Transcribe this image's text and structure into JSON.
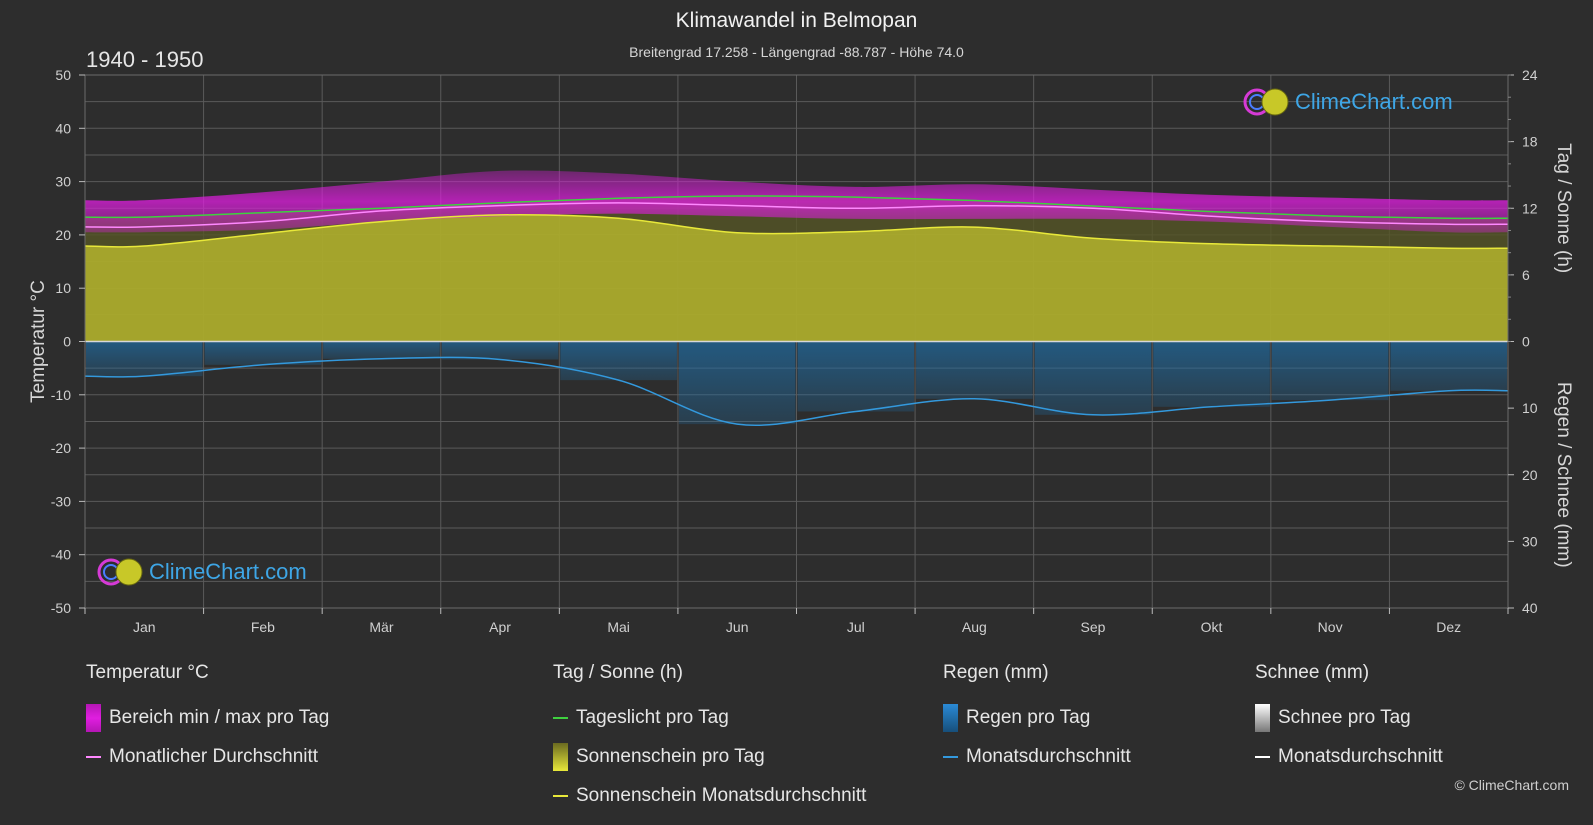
{
  "header": {
    "title": "Klimawandel in Belmopan",
    "subtitle": "Breitengrad 17.258 - Längengrad -88.787 - Höhe 74.0",
    "period": "1940 - 1950"
  },
  "brand": {
    "logo_text": "ClimeChart.com",
    "copyright": "© ClimeChart.com"
  },
  "colors": {
    "background": "#2d2d2d",
    "temp_range": "#e01ee0",
    "temp_avg": "#ff88ff",
    "daylight": "#3fd13f",
    "sunshine_fill": "#b4b42e",
    "sunshine_avg": "#e8e83a",
    "rain": "#1f6fa8",
    "rain_avg": "#3399dd",
    "snow_avg": "#ffffff",
    "logo": "#3ea6e6"
  },
  "chart_data": {
    "type": "area",
    "title": "Klimawandel in Belmopan",
    "categories": [
      "Jan",
      "Feb",
      "Mär",
      "Apr",
      "Mai",
      "Jun",
      "Jul",
      "Aug",
      "Sep",
      "Okt",
      "Nov",
      "Dez"
    ],
    "axes": {
      "left": {
        "label": "Temperatur °C",
        "range": [
          -50,
          50
        ],
        "ticks": [
          "50",
          "40",
          "30",
          "20",
          "10",
          "0",
          "-10",
          "-20",
          "-30",
          "-40",
          "-50"
        ]
      },
      "right_top": {
        "label": "Tag / Sonne (h)",
        "range": [
          0,
          24
        ],
        "ticks": [
          "24",
          "18",
          "12",
          "6",
          "0"
        ]
      },
      "right_bottom": {
        "label": "Regen / Schnee (mm)",
        "range": [
          0,
          40
        ],
        "ticks": [
          "0",
          "10",
          "20",
          "30",
          "40"
        ]
      }
    },
    "grid": true,
    "series": [
      {
        "name": "Bereich min / max pro Tag",
        "kind": "band",
        "axis": "temperature",
        "min": [
          20.5,
          21,
          22.5,
          23.5,
          24,
          23.5,
          23,
          23,
          23,
          22.5,
          21.5,
          20.5
        ],
        "max": [
          26.5,
          28,
          30,
          32,
          31.5,
          30,
          29,
          29.5,
          28.5,
          27.5,
          27,
          26.5
        ]
      },
      {
        "name": "Monatlicher Durchschnitt",
        "kind": "line",
        "axis": "temperature",
        "values": [
          21.5,
          22.5,
          24.5,
          25.5,
          26,
          25.5,
          25,
          25.5,
          25,
          23.5,
          22.5,
          22
        ]
      },
      {
        "name": "Tageslicht pro Tag",
        "kind": "line",
        "axis": "sun_hours",
        "values": [
          11.2,
          11.6,
          12,
          12.5,
          12.9,
          13.1,
          13,
          12.7,
          12.2,
          11.7,
          11.3,
          11.1
        ]
      },
      {
        "name": "Sonnenschein pro Tag",
        "kind": "area",
        "axis": "sun_hours",
        "values": [
          8.6,
          9.7,
          10.8,
          11.4,
          11.1,
          9.8,
          9.9,
          10.3,
          9.3,
          8.8,
          8.6,
          8.4
        ]
      },
      {
        "name": "Sonnenschein Monatsdurchschnitt",
        "kind": "line",
        "axis": "sun_hours",
        "values": [
          8.6,
          9.7,
          10.8,
          11.4,
          11.1,
          9.8,
          9.9,
          10.3,
          9.3,
          8.8,
          8.6,
          8.4
        ]
      },
      {
        "name": "Regen pro Tag",
        "kind": "bars",
        "axis": "precip",
        "values": [
          5.2,
          3.5,
          2.6,
          2.7,
          5.8,
          12.4,
          10.5,
          8.6,
          11,
          9.8,
          8.8,
          7.4
        ]
      },
      {
        "name": "Monatsdurchschnitt Regen",
        "kind": "line",
        "axis": "precip",
        "values": [
          5.2,
          3.5,
          2.6,
          2.7,
          5.8,
          12.4,
          10.5,
          8.6,
          11,
          9.8,
          8.8,
          7.4
        ]
      },
      {
        "name": "Monatsdurchschnitt Schnee",
        "kind": "line",
        "axis": "precip",
        "values": [
          0,
          0,
          0,
          0,
          0,
          0,
          0,
          0,
          0,
          0,
          0,
          0
        ]
      }
    ]
  },
  "legend": {
    "temperature": {
      "title": "Temperatur °C",
      "items": [
        "Bereich min / max pro Tag",
        "Monatlicher Durchschnitt"
      ]
    },
    "sun": {
      "title": "Tag / Sonne (h)",
      "items": [
        "Tageslicht pro Tag",
        "Sonnenschein pro Tag",
        "Sonnenschein Monatsdurchschnitt"
      ]
    },
    "rain": {
      "title": "Regen (mm)",
      "items": [
        "Regen pro Tag",
        "Monatsdurchschnitt"
      ]
    },
    "snow": {
      "title": "Schnee (mm)",
      "items": [
        "Schnee pro Tag",
        "Monatsdurchschnitt"
      ]
    }
  }
}
